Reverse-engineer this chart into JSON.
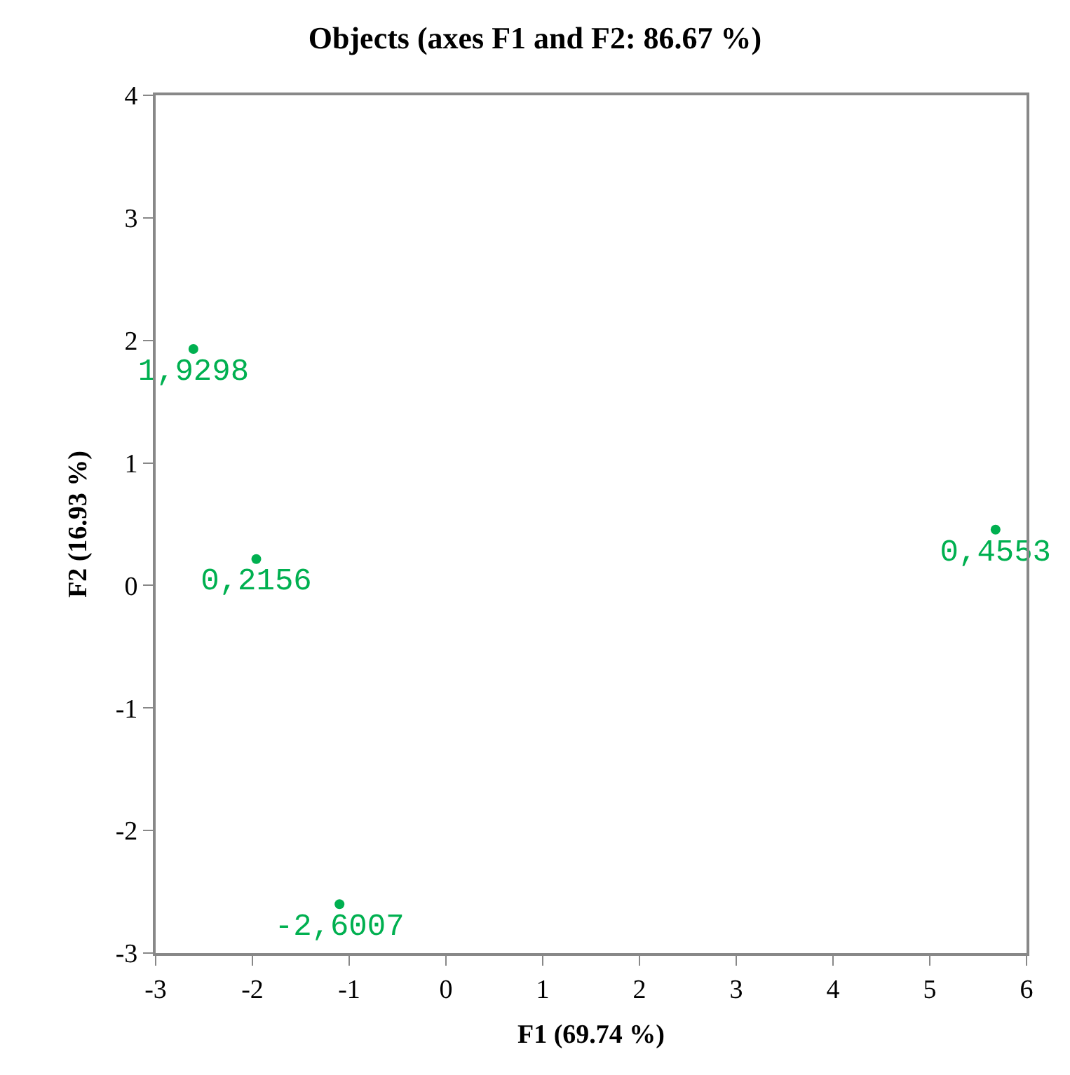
{
  "chart_data": {
    "type": "scatter",
    "title": "Objects (axes F1 and F2: 86.67 %)",
    "xlabel": "F1 (69.74 %)",
    "ylabel": "F2 (16.93 %)",
    "x": [
      -2.61,
      -1.96,
      -1.1,
      5.68
    ],
    "series": [
      {
        "color": "#00b050",
        "values": [
          1.9298,
          0.2156,
          -2.6007,
          0.4553
        ],
        "value_labels": [
          "1,9298",
          "0,2156",
          "-2,6007",
          "0,4553"
        ]
      }
    ],
    "xlim": [
      -3,
      6
    ],
    "xticks": [
      -3,
      -2,
      -1,
      0,
      1,
      2,
      3,
      4,
      5,
      6
    ],
    "ylim": [
      -3,
      4
    ],
    "yticks": [
      -3,
      -2,
      -1,
      0,
      1,
      2,
      3,
      4
    ],
    "legend": false,
    "marker": "circle"
  }
}
